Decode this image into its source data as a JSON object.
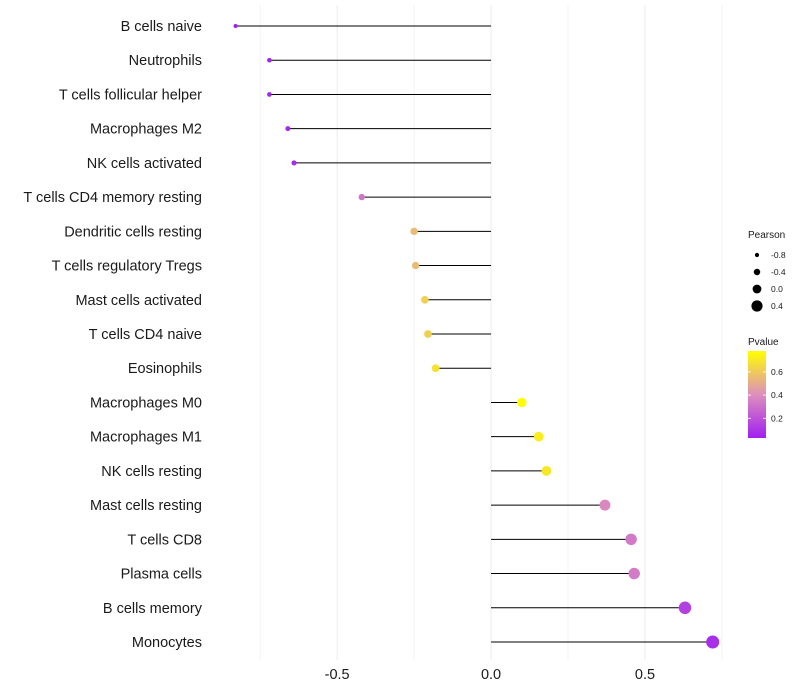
{
  "chart_data": {
    "type": "lollipop",
    "title": "",
    "xlabel": "",
    "ylabel": "",
    "xlim": [
      -0.9,
      0.76
    ],
    "xticks": [
      -0.5,
      0.0,
      0.5
    ],
    "xtick_labels": [
      "-0.5",
      "0.0",
      "0.5"
    ],
    "grid": true,
    "categories": [
      "B cells naive",
      "Neutrophils",
      "T cells follicular helper",
      "Macrophages M2",
      "NK cells activated",
      "T cells CD4 memory resting",
      "Dendritic cells resting",
      "T cells regulatory  Tregs ",
      "Mast cells activated",
      "T cells CD4 naive",
      "Eosinophils",
      "Macrophages M0",
      "Macrophages M1",
      "NK cells resting",
      "Mast cells resting",
      "T cells CD8",
      "Plasma cells",
      "B cells memory",
      "Monocytes"
    ],
    "pearson": [
      -0.83,
      -0.72,
      -0.72,
      -0.66,
      -0.64,
      -0.42,
      -0.25,
      -0.245,
      -0.215,
      -0.205,
      -0.18,
      0.1,
      0.155,
      0.18,
      0.37,
      0.455,
      0.465,
      0.63,
      0.72
    ],
    "pvalue": [
      0.03,
      0.05,
      0.05,
      0.06,
      0.07,
      0.32,
      0.55,
      0.55,
      0.62,
      0.62,
      0.68,
      0.78,
      0.72,
      0.7,
      0.38,
      0.33,
      0.34,
      0.14,
      0.08
    ],
    "size_legend": {
      "title": "Pearson",
      "values": [
        -0.8,
        -0.4,
        0.0,
        0.4
      ],
      "labels": [
        "-0.8",
        "-0.4",
        "0.0",
        "0.4"
      ]
    },
    "color_legend": {
      "title": "Pvalue",
      "range": [
        0.03,
        0.78
      ],
      "ticks": [
        0.2,
        0.4,
        0.6
      ],
      "tick_labels": [
        "0.2",
        "0.4",
        "0.6"
      ],
      "colors": {
        "low": "#a020f0",
        "mid": "#de8fbd",
        "high": "#ffff00"
      }
    }
  }
}
